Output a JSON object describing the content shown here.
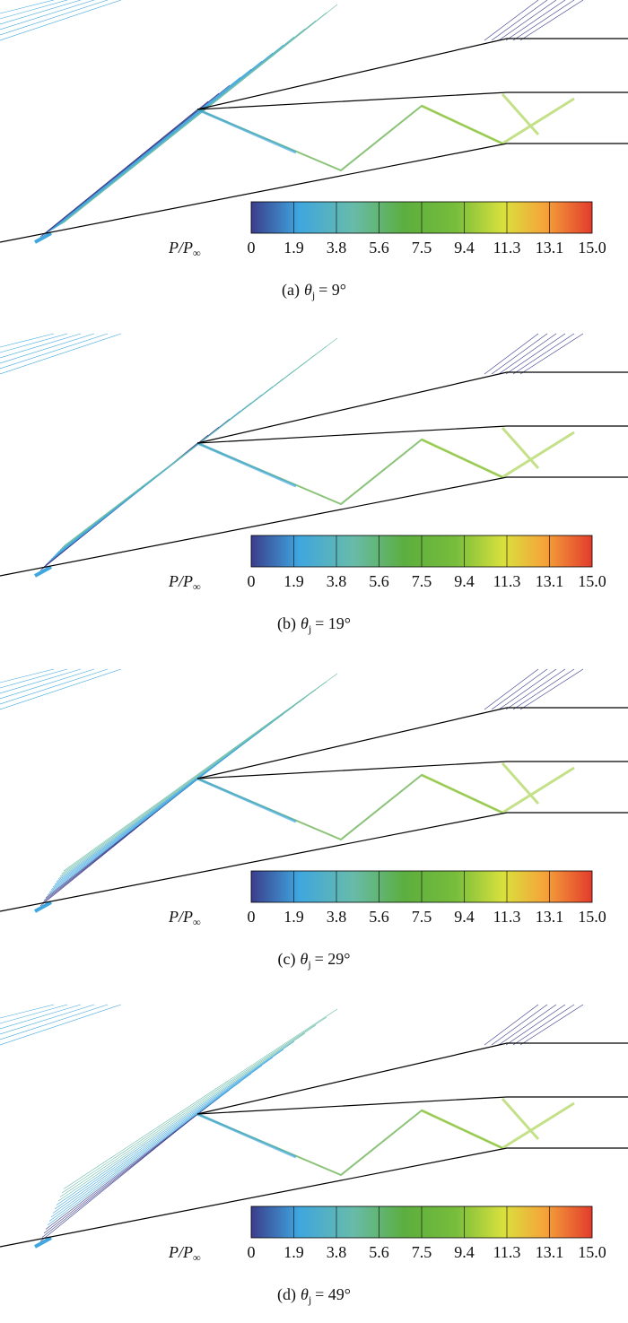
{
  "colorbar": {
    "label": {
      "main": "P/P",
      "sub": "∞"
    },
    "ticks": [
      "0",
      "1.9",
      "3.8",
      "5.6",
      "7.5",
      "9.4",
      "11.3",
      "13.1",
      "15.0"
    ]
  },
  "panels": [
    {
      "prefix": "(a)",
      "symbol": "θ",
      "sub": "j",
      "rest": "= 9°"
    },
    {
      "prefix": "(b)",
      "symbol": "θ",
      "sub": "j",
      "rest": "= 19°"
    },
    {
      "prefix": "(c)",
      "symbol": "θ",
      "sub": "j",
      "rest": "= 29°"
    },
    {
      "prefix": "(d)",
      "symbol": "θ",
      "sub": "j",
      "rest": "= 49°"
    }
  ]
}
